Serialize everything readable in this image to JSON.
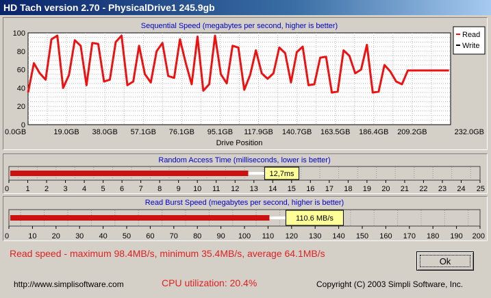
{
  "window": {
    "title": "HD Tach version 2.70 - PhysicalDrive1 245.9gb"
  },
  "colors": {
    "read": "#ee1111",
    "accent_blue": "#0000cc",
    "summary_red": "#e02020",
    "bar_label_bg": "#ffff99"
  },
  "chart_data": [
    {
      "type": "line",
      "title": "Sequential Speed (megabytes per second, higher is better)",
      "xlabel": "Drive Position",
      "ylabel": "",
      "x_tick_labels": [
        "0.0GB",
        "19.0GB",
        "38.0GB",
        "57.1GB",
        "76.1GB",
        "95.1GB",
        "117.9GB",
        "140.7GB",
        "163.5GB",
        "186.4GB",
        "209.2GB",
        "232.0GB"
      ],
      "y_ticks": [
        0,
        20,
        40,
        60,
        80,
        100
      ],
      "ylim": [
        0,
        100
      ],
      "xlim": [
        0,
        245.9
      ],
      "grid": true,
      "legend": "top-right",
      "series": [
        {
          "name": "Read",
          "color": "#ee1111",
          "x": [
            0,
            3.4,
            6.8,
            10.2,
            13.6,
            17,
            20.4,
            23.8,
            27.2,
            30.6,
            34,
            37.4,
            40.8,
            44.2,
            47.6,
            51,
            54.4,
            57.8,
            61.2,
            64.6,
            68,
            71.4,
            74.8,
            78.2,
            81.6,
            85,
            88.4,
            91.8,
            95.2,
            98.6,
            102,
            105.4,
            108.8,
            112.2,
            115.6,
            119,
            122.4,
            125.8,
            129.2,
            132.6,
            136,
            139.4,
            142.8,
            146.2,
            149.6,
            153,
            156.4,
            159.8,
            163.2,
            166.6,
            170,
            173.4,
            176.8,
            180.2,
            183.6,
            187,
            190.4,
            193.8,
            197.2,
            200.6,
            204,
            207.4,
            210.8,
            214.2,
            217.6,
            221,
            224.4,
            227.8,
            231.2,
            234.6,
            238,
            241.4,
            245
          ],
          "values": [
            35,
            67,
            56,
            49,
            93,
            97,
            40,
            54,
            92,
            86,
            43,
            89,
            88,
            47,
            49,
            90,
            97,
            43,
            47,
            86,
            55,
            46,
            80,
            89,
            53,
            51,
            93,
            67,
            44,
            96,
            37,
            44,
            97,
            55,
            45,
            86,
            84,
            38,
            54,
            81,
            56,
            50,
            56,
            84,
            78,
            46,
            79,
            85,
            43,
            44,
            73,
            74,
            35,
            36,
            81,
            75,
            56,
            60,
            87,
            35,
            36,
            65,
            58,
            47,
            44,
            59,
            59,
            59,
            59,
            59,
            59,
            59,
            59
          ]
        },
        {
          "name": "Write",
          "color": "#000000",
          "x": [],
          "values": []
        }
      ]
    },
    {
      "type": "bar",
      "title": "Random Access Time (milliseconds, lower is better)",
      "categories": [
        "Random Access Time"
      ],
      "values": [
        12.7
      ],
      "value_label": "12,7ms",
      "x_tick_labels": [
        "0",
        "1",
        "2",
        "3",
        "4",
        "5",
        "6",
        "7",
        "8",
        "9",
        "10",
        "11",
        "12",
        "13",
        "14",
        "15",
        "16",
        "17",
        "18",
        "19",
        "20",
        "21",
        "22",
        "23",
        "24",
        "25"
      ],
      "xlim": [
        0,
        25
      ]
    },
    {
      "type": "bar",
      "title": "Read Burst Speed (megabytes per second, higher is better)",
      "categories": [
        "Read Burst Speed"
      ],
      "values": [
        110.6
      ],
      "value_label": "110.6 MB/s",
      "x_tick_labels": [
        "0",
        "10",
        "20",
        "30",
        "40",
        "50",
        "60",
        "70",
        "80",
        "90",
        "100",
        "110",
        "120",
        "130",
        "140",
        "150",
        "160",
        "170",
        "180",
        "190",
        "200"
      ],
      "xlim": [
        0,
        200
      ]
    }
  ],
  "summary": {
    "read_speed": "Read speed - maximum 98.4MB/s, minimum 35.4MB/s, average 64.1MB/s",
    "cpu": "CPU utilization: 20.4%",
    "url": "http://www.simplisoftware.com",
    "copyright": "Copyright (C) 2003 Simpli Software, Inc."
  },
  "buttons": {
    "ok_label": "Ok"
  }
}
